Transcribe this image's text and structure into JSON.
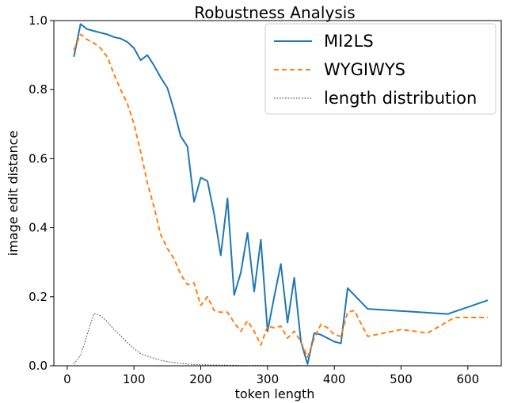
{
  "chart_data": {
    "type": "line",
    "title": "Robustness Analysis",
    "xlabel": "token length",
    "ylabel": "image edit distance",
    "xlim": [
      -20,
      650
    ],
    "ylim": [
      0.0,
      1.0
    ],
    "xticks": [
      0,
      100,
      200,
      300,
      400,
      500,
      600
    ],
    "yticks": [
      0.0,
      0.2,
      0.4,
      0.6,
      0.8,
      1.0
    ],
    "xtick_labels": [
      "0",
      "100",
      "200",
      "300",
      "400",
      "500",
      "600"
    ],
    "ytick_labels": [
      "0.0",
      "0.2",
      "0.4",
      "0.6",
      "0.8",
      "1.0"
    ],
    "grid": false,
    "legend_position": "top-right",
    "series": [
      {
        "name": "MI2LS",
        "style": "solid",
        "color": "#1f77b4",
        "x": [
          10,
          20,
          30,
          40,
          50,
          60,
          70,
          80,
          90,
          100,
          110,
          120,
          130,
          140,
          150,
          160,
          170,
          180,
          190,
          200,
          210,
          220,
          230,
          240,
          250,
          260,
          270,
          280,
          290,
          300,
          310,
          320,
          330,
          340,
          350,
          360,
          370,
          380,
          390,
          400,
          410,
          420,
          450,
          570,
          630
        ],
        "y": [
          0.895,
          0.99,
          0.975,
          0.97,
          0.965,
          0.96,
          0.952,
          0.948,
          0.938,
          0.92,
          0.885,
          0.9,
          0.87,
          0.835,
          0.805,
          0.74,
          0.665,
          0.635,
          0.475,
          0.545,
          0.535,
          0.44,
          0.32,
          0.485,
          0.205,
          0.27,
          0.385,
          0.215,
          0.365,
          0.1,
          0.2,
          0.295,
          0.125,
          0.255,
          0.07,
          0.005,
          0.095,
          0.09,
          0.08,
          0.07,
          0.065,
          0.225,
          0.165,
          0.15,
          0.19
        ]
      },
      {
        "name": "WYGIWYS",
        "style": "dashed",
        "color": "#ff7f0e",
        "x": [
          10,
          20,
          30,
          40,
          50,
          60,
          70,
          80,
          90,
          100,
          110,
          120,
          130,
          140,
          150,
          160,
          170,
          180,
          190,
          200,
          210,
          220,
          230,
          240,
          250,
          260,
          270,
          280,
          290,
          300,
          310,
          320,
          330,
          340,
          350,
          360,
          370,
          380,
          390,
          400,
          410,
          420,
          430,
          450,
          500,
          540,
          580,
          630
        ],
        "y": [
          0.915,
          0.96,
          0.945,
          0.935,
          0.92,
          0.895,
          0.845,
          0.8,
          0.76,
          0.7,
          0.62,
          0.53,
          0.46,
          0.38,
          0.34,
          0.31,
          0.265,
          0.235,
          0.24,
          0.175,
          0.2,
          0.16,
          0.155,
          0.155,
          0.125,
          0.1,
          0.13,
          0.1,
          0.06,
          0.115,
          0.11,
          0.115,
          0.08,
          0.1,
          0.07,
          0.025,
          0.08,
          0.12,
          0.11,
          0.09,
          0.085,
          0.155,
          0.16,
          0.085,
          0.105,
          0.095,
          0.14,
          0.14
        ]
      },
      {
        "name": "length distribution",
        "style": "dotted",
        "color": "#333333",
        "x": [
          10,
          20,
          30,
          40,
          50,
          60,
          70,
          80,
          90,
          100,
          110,
          120,
          130,
          140,
          150,
          160,
          170,
          180,
          200,
          220,
          240,
          260,
          300,
          350,
          400,
          450,
          500,
          550,
          600,
          630
        ],
        "y": [
          0.005,
          0.03,
          0.09,
          0.152,
          0.145,
          0.128,
          0.105,
          0.087,
          0.067,
          0.05,
          0.035,
          0.028,
          0.022,
          0.016,
          0.012,
          0.009,
          0.007,
          0.005,
          0.003,
          0.002,
          0.0015,
          0.001,
          0.0008,
          0.0005,
          0.0003,
          0.0002,
          0.0001,
          0.0001,
          0.0,
          0.0
        ]
      }
    ]
  }
}
